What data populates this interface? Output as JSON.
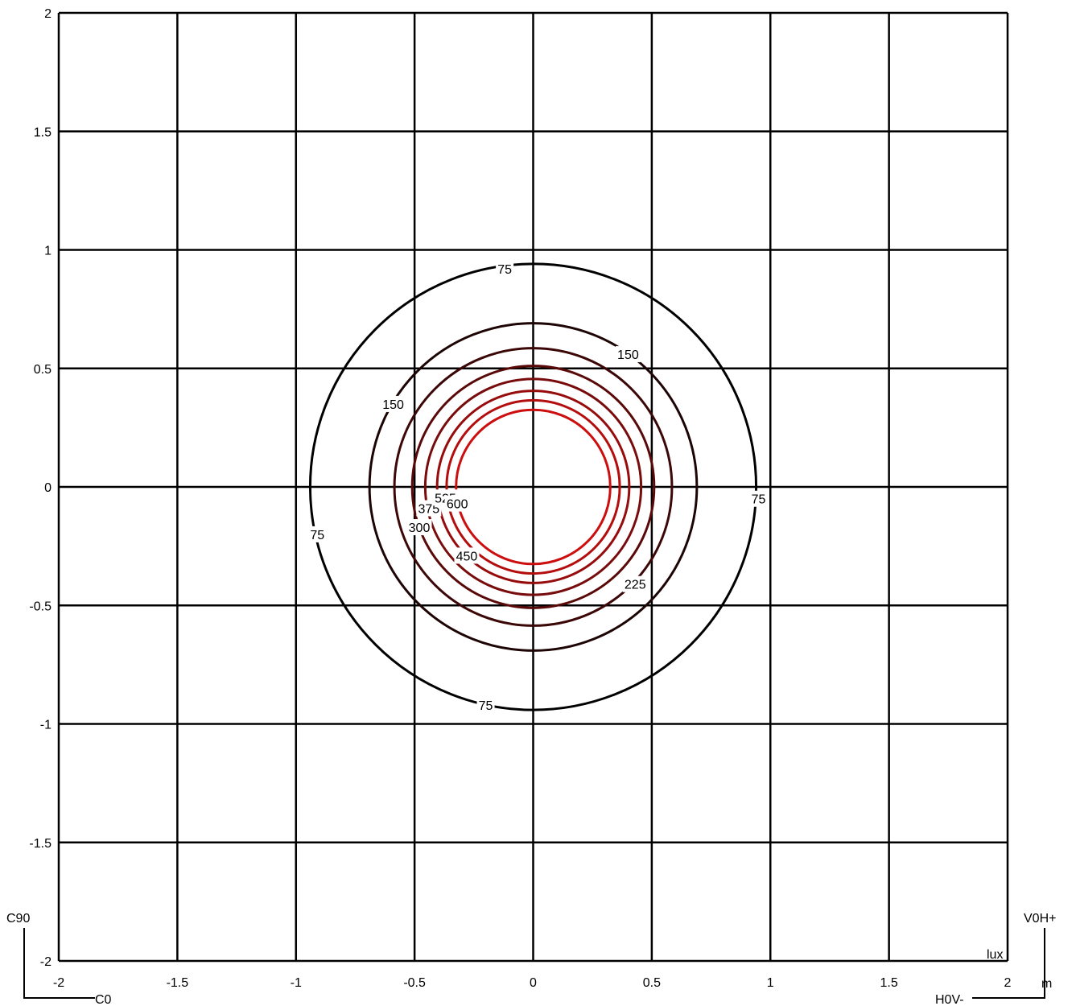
{
  "chart_data": {
    "type": "contour",
    "xlim": [
      -2,
      2
    ],
    "ylim": [
      -2,
      2
    ],
    "x_ticks": [
      -2,
      -1.5,
      -1,
      -0.5,
      0,
      0.5,
      1,
      1.5,
      2
    ],
    "y_ticks": [
      -2,
      -1.5,
      -1,
      -0.5,
      0,
      0.5,
      1,
      1.5,
      2
    ],
    "x_unit": "m",
    "value_unit": "lux",
    "grid": true,
    "corner_labels": {
      "top_left": "C90",
      "bottom_left": "C0",
      "top_right": "V0H+",
      "bottom_right": "H0V-"
    },
    "contours": [
      {
        "level": 75,
        "radius": 0.94,
        "color": "#000000"
      },
      {
        "level": 150,
        "radius": 0.69,
        "color": "#1e0505"
      },
      {
        "level": 225,
        "radius": 0.585,
        "color": "#3c0707"
      },
      {
        "level": 300,
        "radius": 0.51,
        "color": "#5a0909"
      },
      {
        "level": 375,
        "radius": 0.455,
        "color": "#780b0b"
      },
      {
        "level": 450,
        "radius": 0.405,
        "color": "#960c0c"
      },
      {
        "level": 525,
        "radius": 0.365,
        "color": "#b40d0d"
      },
      {
        "level": 600,
        "radius": 0.325,
        "color": "#cc0e0e"
      }
    ],
    "labels": [
      {
        "text": "75",
        "x": -0.12,
        "y": 0.92
      },
      {
        "text": "75",
        "x": 0.95,
        "y": -0.05
      },
      {
        "text": "75",
        "x": -0.91,
        "y": -0.2
      },
      {
        "text": "75",
        "x": -0.2,
        "y": -0.92
      },
      {
        "text": "150",
        "x": 0.4,
        "y": 0.56
      },
      {
        "text": "150",
        "x": -0.59,
        "y": 0.35
      },
      {
        "text": "225",
        "x": 0.43,
        "y": -0.41
      },
      {
        "text": "300",
        "x": -0.48,
        "y": -0.17
      },
      {
        "text": "375",
        "x": -0.44,
        "y": -0.09
      },
      {
        "text": "450",
        "x": -0.28,
        "y": -0.29
      },
      {
        "text": "525",
        "x": -0.37,
        "y": -0.045
      },
      {
        "text": "600",
        "x": -0.32,
        "y": -0.07
      }
    ]
  }
}
